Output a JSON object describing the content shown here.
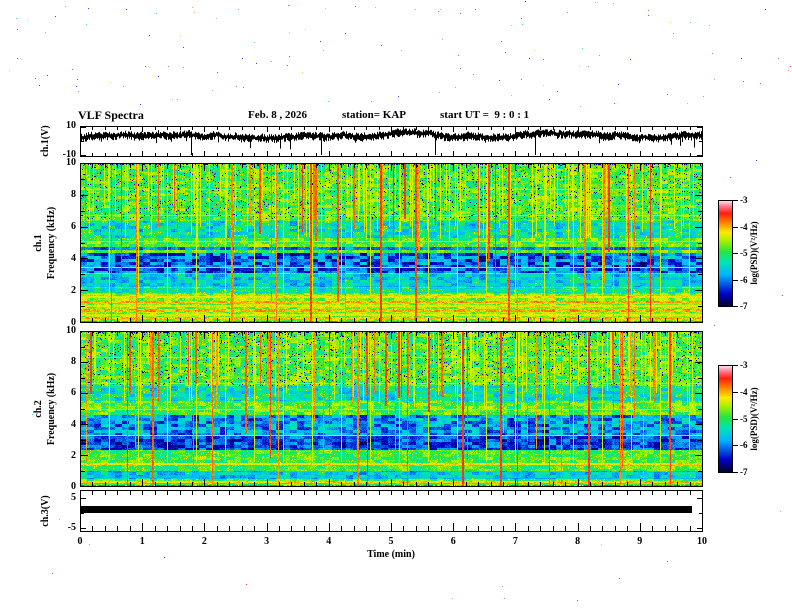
{
  "header": {
    "title": "VLF Spectra",
    "date": "Feb. 8 , 2026",
    "station": "station= KAP",
    "start_ut": "start UT =  9 : 0 : 1"
  },
  "time_axis": {
    "label": "Time (min)",
    "ticks": [
      "0",
      "1",
      "2",
      "3",
      "4",
      "5",
      "6",
      "7",
      "8",
      "9",
      "10"
    ],
    "min": 0,
    "max": 10,
    "minor_per_major": 5
  },
  "panels": {
    "ch1_voltage": {
      "ylabel": "ch.1(V)",
      "ytick_top": "10",
      "ytick_bottom": "-10",
      "ylim": [
        -10,
        10
      ]
    },
    "ch1_spectrogram": {
      "ylabel_channel": "ch.1",
      "ylabel_axis": "Frequency (kHz)",
      "yticks": [
        "10",
        "8",
        "6",
        "4",
        "2",
        "0"
      ],
      "ylim": [
        0,
        10
      ]
    },
    "ch2_spectrogram": {
      "ylabel_channel": "ch.2",
      "ylabel_axis": "Frequency (kHz)",
      "yticks": [
        "10",
        "8",
        "6",
        "4",
        "2",
        "0"
      ],
      "ylim": [
        0,
        10
      ]
    },
    "ch3_voltage": {
      "ylabel": "ch.3(V)",
      "ytick_top": "5",
      "ytick_bottom": "-5",
      "ylim": [
        -5,
        5
      ]
    }
  },
  "colorbars": [
    {
      "label": "log(PSD)(V²/Hz)",
      "ticks": [
        "-3",
        "-4",
        "-5",
        "-6",
        "-7"
      ],
      "max": -3,
      "min": -7
    },
    {
      "label": "log(PSD)(V²/Hz)",
      "ticks": [
        "-3",
        "-4",
        "-5",
        "-6",
        "-7"
      ],
      "max": -3,
      "min": -7
    }
  ],
  "chart_data": [
    {
      "type": "line",
      "name": "ch1_waveform",
      "xlim": [
        0,
        10
      ],
      "ylim": [
        -10,
        10
      ],
      "description": "dense noisy voltage trace fluctuating around +2..+5 V with frequent downward spikes reaching -10 V",
      "mean_level": 3.2,
      "noise_band": 2.6,
      "spike_rate": 0.045,
      "seed": 1234
    },
    {
      "type": "heatmap",
      "name": "ch1_spectrogram",
      "xlim": [
        0,
        10
      ],
      "ylim": [
        0,
        10
      ],
      "zlim": [
        -7,
        -3
      ],
      "description": "VLF power spectral density, mostly green (~-4.9) with red vertical sferic streaks, dark-blue absorption band 3.1-4.4 kHz, cyan bands, striped low-frequency lines",
      "base": -4.85,
      "base_var": 0.45,
      "seed": 11,
      "streak_density": 0.085,
      "bands": [
        {
          "f_lo": 3.15,
          "f_hi": 4.35,
          "level": -6.1,
          "var": 0.75
        },
        {
          "f_lo": 2.25,
          "f_hi": 3.05,
          "level": -5.55,
          "var": 0.5
        },
        {
          "f_lo": 5.3,
          "f_hi": 6.35,
          "level": -5.35,
          "var": 0.65
        },
        {
          "f_lo": 4.55,
          "f_hi": 4.78,
          "level": -6.0,
          "var": 0.4
        },
        {
          "f_lo": 1.85,
          "f_hi": 2.2,
          "level": -5.3,
          "var": 0.5
        },
        {
          "f_lo": 0.0,
          "f_hi": 1.8,
          "level": -4.6,
          "var": 0.35
        }
      ],
      "lines": [
        {
          "f": 1.62,
          "level": -4.2
        },
        {
          "f": 1.3,
          "level": -3.95
        },
        {
          "f": 1.05,
          "level": -4.25
        },
        {
          "f": 0.78,
          "level": -3.95
        },
        {
          "f": 0.5,
          "level": -4.3
        },
        {
          "f": 0.3,
          "level": -4.0
        },
        {
          "f": 0.08,
          "level": -3.6
        }
      ]
    },
    {
      "type": "heatmap",
      "name": "ch2_spectrogram",
      "xlim": [
        0,
        10
      ],
      "ylim": [
        0,
        10
      ],
      "zlim": [
        -7,
        -3
      ],
      "description": "similar to ch.1 with strong blue band 2.4-3.25 kHz and moderate blue band 3.3-4.6 kHz",
      "base": -4.85,
      "base_var": 0.45,
      "seed": 23,
      "streak_density": 0.09,
      "bands": [
        {
          "f_lo": 3.3,
          "f_hi": 4.6,
          "level": -5.9,
          "var": 0.7
        },
        {
          "f_lo": 2.4,
          "f_hi": 3.25,
          "level": -6.25,
          "var": 0.55
        },
        {
          "f_lo": 1.95,
          "f_hi": 2.35,
          "level": -4.9,
          "var": 0.35
        },
        {
          "f_lo": 5.5,
          "f_hi": 6.5,
          "level": -5.35,
          "var": 0.6
        },
        {
          "f_lo": 1.0,
          "f_hi": 1.9,
          "level": -4.9,
          "var": 0.4
        },
        {
          "f_lo": 0.5,
          "f_hi": 1.0,
          "level": -5.6,
          "var": 0.5
        }
      ],
      "lines": [
        {
          "f": 1.45,
          "level": -4.2
        },
        {
          "f": 0.3,
          "level": -4.1
        },
        {
          "f": 0.08,
          "level": -3.4
        }
      ]
    },
    {
      "type": "line",
      "name": "ch3_waveform",
      "xlim": [
        0,
        10
      ],
      "ylim": [
        -5,
        5
      ],
      "description": "constant thick flat trace spanning about 0 to +2 V for the whole record",
      "value_low": 0,
      "value_high": 2.2
    }
  ]
}
